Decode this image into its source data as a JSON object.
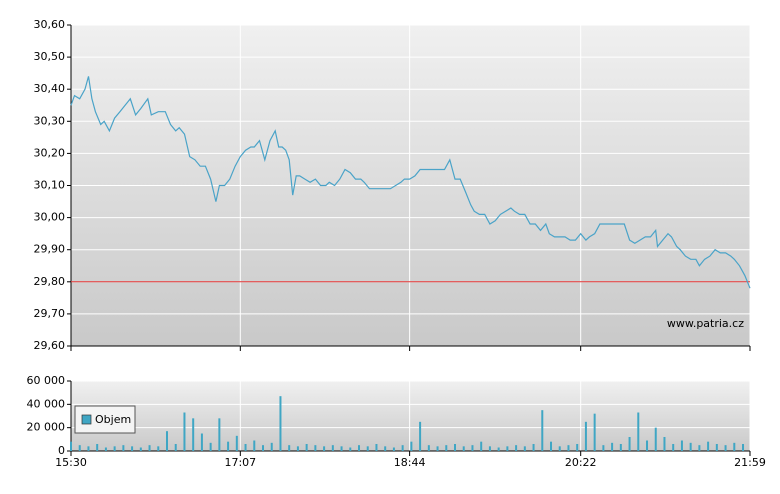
{
  "chart_data": [
    {
      "type": "line",
      "color": "#4aa3c8",
      "grid": true,
      "watermark": "www.patria.cz",
      "reference_line": 29.8,
      "reference_color": "#e03030",
      "xlim": [
        "15:30",
        "21:59"
      ],
      "xticks": [
        "15:30",
        "17:07",
        "18:44",
        "20:22",
        "21:59"
      ],
      "ylim": [
        29.6,
        30.6
      ],
      "yticks": [
        {
          "value": 29.6,
          "label": "29,60"
        },
        {
          "value": 29.7,
          "label": "29,70"
        },
        {
          "value": 29.8,
          "label": "29,80"
        },
        {
          "value": 29.9,
          "label": "29,90"
        },
        {
          "value": 30.0,
          "label": "30,00"
        },
        {
          "value": 30.1,
          "label": "30,10"
        },
        {
          "value": 30.2,
          "label": "30,20"
        },
        {
          "value": 30.3,
          "label": "30,30"
        },
        {
          "value": 30.4,
          "label": "30,40"
        },
        {
          "value": 30.5,
          "label": "30,50"
        },
        {
          "value": 30.6,
          "label": "30,60"
        }
      ],
      "x": [
        "15:30",
        "15:32",
        "15:35",
        "15:38",
        "15:40",
        "15:42",
        "15:44",
        "15:47",
        "15:49",
        "15:52",
        "15:55",
        "15:58",
        "16:01",
        "16:04",
        "16:07",
        "16:10",
        "16:14",
        "16:16",
        "16:20",
        "16:24",
        "16:27",
        "16:30",
        "16:32",
        "16:35",
        "16:38",
        "16:41",
        "16:44",
        "16:47",
        "16:50",
        "16:53",
        "16:55",
        "16:58",
        "17:01",
        "17:04",
        "17:07",
        "17:10",
        "17:13",
        "17:15",
        "17:18",
        "17:21",
        "17:24",
        "17:27",
        "17:29",
        "17:31",
        "17:33",
        "17:35",
        "17:37",
        "17:39",
        "17:41",
        "17:44",
        "17:47",
        "17:50",
        "17:53",
        "17:56",
        "17:58",
        "18:01",
        "18:04",
        "18:07",
        "18:10",
        "18:13",
        "18:16",
        "18:18",
        "18:21",
        "18:27",
        "18:33",
        "18:39",
        "18:41",
        "18:44",
        "18:47",
        "18:50",
        "18:53",
        "18:56",
        "19:01",
        "19:04",
        "19:07",
        "19:10",
        "19:13",
        "19:16",
        "19:19",
        "19:21",
        "19:24",
        "19:27",
        "19:30",
        "19:33",
        "19:36",
        "19:39",
        "19:42",
        "19:44",
        "19:47",
        "19:50",
        "19:53",
        "19:56",
        "19:59",
        "20:02",
        "20:04",
        "20:07",
        "20:10",
        "20:13",
        "20:16",
        "20:19",
        "20:22",
        "20:25",
        "20:27",
        "20:30",
        "20:33",
        "20:36",
        "20:39",
        "20:42",
        "20:45",
        "20:47",
        "20:50",
        "20:53",
        "20:56",
        "20:59",
        "21:02",
        "21:05",
        "21:06",
        "21:09",
        "21:12",
        "21:14",
        "21:17",
        "21:19",
        "21:22",
        "21:25",
        "21:28",
        "21:30",
        "21:33",
        "21:36",
        "21:39",
        "21:42",
        "21:45",
        "21:48",
        "21:50",
        "21:53",
        "21:56",
        "21:59"
      ],
      "values": [
        30.35,
        30.38,
        30.37,
        30.4,
        30.44,
        30.37,
        30.33,
        30.29,
        30.3,
        30.27,
        30.31,
        30.33,
        30.35,
        30.37,
        30.32,
        30.34,
        30.37,
        30.32,
        30.33,
        30.33,
        30.29,
        30.27,
        30.28,
        30.26,
        30.19,
        30.18,
        30.16,
        30.16,
        30.12,
        30.05,
        30.1,
        30.1,
        30.12,
        30.16,
        30.19,
        30.21,
        30.22,
        30.22,
        30.24,
        30.18,
        30.24,
        30.27,
        30.22,
        30.22,
        30.21,
        30.18,
        30.07,
        30.13,
        30.13,
        30.12,
        30.11,
        30.12,
        30.1,
        30.1,
        30.11,
        30.1,
        30.12,
        30.15,
        30.14,
        30.12,
        30.12,
        30.11,
        30.09,
        30.09,
        30.09,
        30.11,
        30.12,
        30.12,
        30.13,
        30.15,
        30.15,
        30.15,
        30.15,
        30.15,
        30.18,
        30.12,
        30.12,
        30.08,
        30.04,
        30.02,
        30.01,
        30.01,
        29.98,
        29.99,
        30.01,
        30.02,
        30.03,
        30.02,
        30.01,
        30.01,
        29.98,
        29.98,
        29.96,
        29.98,
        29.95,
        29.94,
        29.94,
        29.94,
        29.93,
        29.93,
        29.95,
        29.93,
        29.94,
        29.95,
        29.98,
        29.98,
        29.98,
        29.98,
        29.98,
        29.98,
        29.93,
        29.92,
        29.93,
        29.94,
        29.94,
        29.96,
        29.91,
        29.93,
        29.95,
        29.94,
        29.91,
        29.9,
        29.88,
        29.87,
        29.87,
        29.85,
        29.87,
        29.88,
        29.9,
        29.89,
        29.89,
        29.88,
        29.87,
        29.85,
        29.82,
        29.78
      ]
    },
    {
      "type": "bar",
      "grid": true,
      "legend": "top-left",
      "xlim": [
        "15:30",
        "21:59"
      ],
      "xticks": [
        "15:30",
        "17:07",
        "18:44",
        "20:22",
        "21:59"
      ],
      "ylim": [
        0,
        60000
      ],
      "yticks": [
        0,
        {
          "value": 20000,
          "label": "20 000"
        },
        {
          "value": 40000,
          "label": "40 000"
        },
        {
          "value": 60000,
          "label": "60 000"
        }
      ],
      "x": [
        "15:30",
        "15:35",
        "15:40",
        "15:45",
        "15:50",
        "15:55",
        "16:00",
        "16:05",
        "16:10",
        "16:15",
        "16:20",
        "16:25",
        "16:30",
        "16:35",
        "16:40",
        "16:45",
        "16:50",
        "16:55",
        "17:00",
        "17:05",
        "17:10",
        "17:15",
        "17:20",
        "17:25",
        "17:30",
        "17:35",
        "17:40",
        "17:45",
        "17:50",
        "17:55",
        "18:00",
        "18:05",
        "18:10",
        "18:15",
        "18:20",
        "18:25",
        "18:30",
        "18:35",
        "18:40",
        "18:45",
        "18:50",
        "18:55",
        "19:00",
        "19:05",
        "19:10",
        "19:15",
        "19:20",
        "19:25",
        "19:30",
        "19:35",
        "19:40",
        "19:45",
        "19:50",
        "19:55",
        "20:00",
        "20:05",
        "20:10",
        "20:15",
        "20:20",
        "20:25",
        "20:30",
        "20:35",
        "20:40",
        "20:45",
        "20:50",
        "20:55",
        "21:00",
        "21:05",
        "21:10",
        "21:15",
        "21:20",
        "21:25",
        "21:30",
        "21:35",
        "21:40",
        "21:45",
        "21:50",
        "21:55"
      ],
      "series": [
        {
          "name": "Objem",
          "color": "#3fa6c4",
          "values": [
            8000,
            5000,
            4000,
            6000,
            3000,
            4000,
            5000,
            4000,
            3000,
            5000,
            4000,
            17000,
            6000,
            33000,
            28000,
            15000,
            7000,
            28000,
            8000,
            13000,
            6000,
            9000,
            5000,
            7000,
            47000,
            5000,
            4000,
            6000,
            5000,
            4000,
            5000,
            4000,
            3000,
            5000,
            4000,
            6000,
            4000,
            3000,
            5000,
            8000,
            25000,
            5000,
            4000,
            5000,
            6000,
            4000,
            5000,
            8000,
            4000,
            3000,
            4000,
            5000,
            4000,
            6000,
            35000,
            8000,
            4000,
            5000,
            6000,
            25000,
            32000,
            5000,
            7000,
            6000,
            12000,
            33000,
            9000,
            20000,
            12000,
            6000,
            9000,
            7000,
            5000,
            8000,
            6000,
            5000,
            7000,
            6000
          ]
        }
      ]
    }
  ]
}
